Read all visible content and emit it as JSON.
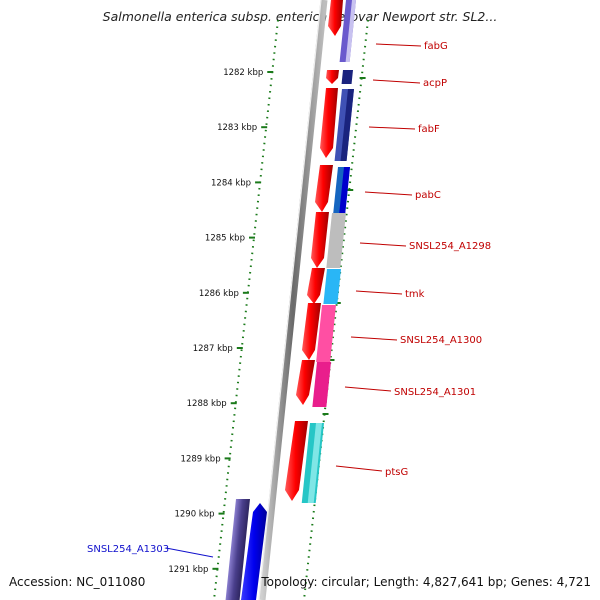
{
  "title": "Salmonella enterica subsp. enterica serovar Newport str. SL2...",
  "footer": {
    "accession": "Accession: NC_011080",
    "topology": "Topology: circular; Length: 4,827,641 bp; Genes: 4,721"
  },
  "ruler": {
    "ticks": [
      "1282 kbp",
      "1283 kbp",
      "1284 kbp",
      "1285 kbp",
      "1286 kbp",
      "1287 kbp",
      "1288 kbp",
      "1289 kbp",
      "1290 kbp",
      "1291 kbp"
    ]
  },
  "genes": [
    {
      "name": "fabG",
      "color": "#c00000"
    },
    {
      "name": "acpP",
      "color": "#c00000"
    },
    {
      "name": "fabF",
      "color": "#c00000"
    },
    {
      "name": "pabC",
      "color": "#c00000"
    },
    {
      "name": "SNSL254_A1298",
      "color": "#c00000"
    },
    {
      "name": "tmk",
      "color": "#c00000"
    },
    {
      "name": "SNSL254_A1300",
      "color": "#c00000"
    },
    {
      "name": "SNSL254_A1301",
      "color": "#c00000"
    },
    {
      "name": "ptsG",
      "color": "#c00000"
    },
    {
      "name": "SNSL254_A1303",
      "color": "#1010cc"
    }
  ],
  "colors": {
    "forward_strand": "#ff0000",
    "reverse_strand": "#0000ee",
    "backbone": "#808080",
    "guide_dots": "#1a7a1a",
    "fabG_feature": "#6a5acd",
    "acpP_feature": "#1a237e",
    "fabF_feature": "#3f51b5",
    "pabC_feature": "#1565c0",
    "A1298_feature": "#bdbdbd",
    "tmk_feature": "#29b6f6",
    "A1300_feature": "#ff4fa3",
    "A1301_feature": "#e91e8c",
    "ptsG_feature": "#26c6c6",
    "A1303_feature": "#4a3f8c"
  }
}
